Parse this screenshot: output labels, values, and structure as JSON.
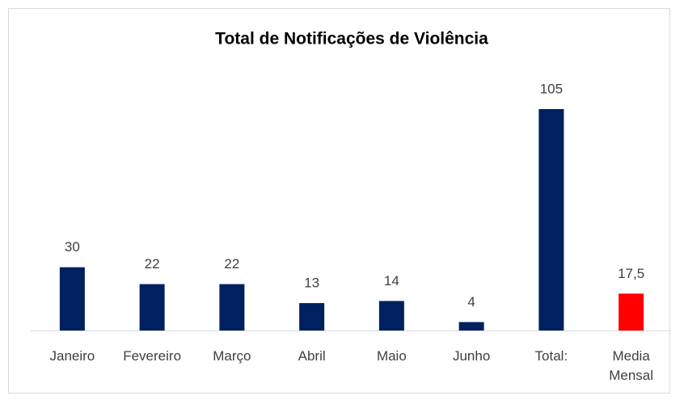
{
  "chart_data": {
    "type": "bar",
    "title": "Total de Notificações de Violência",
    "categories": [
      "Janeiro",
      "Fevereiro",
      "Março",
      "Abril",
      "Maio",
      "Junho",
      "Total:",
      "Media Mensal"
    ],
    "values": [
      30,
      22,
      22,
      13,
      14,
      4,
      105,
      17.5
    ],
    "value_labels": [
      "30",
      "22",
      "22",
      "13",
      "14",
      "4",
      "105",
      "17,5"
    ],
    "colors": [
      "#002060",
      "#002060",
      "#002060",
      "#002060",
      "#002060",
      "#002060",
      "#002060",
      "#ff0000"
    ]
  }
}
